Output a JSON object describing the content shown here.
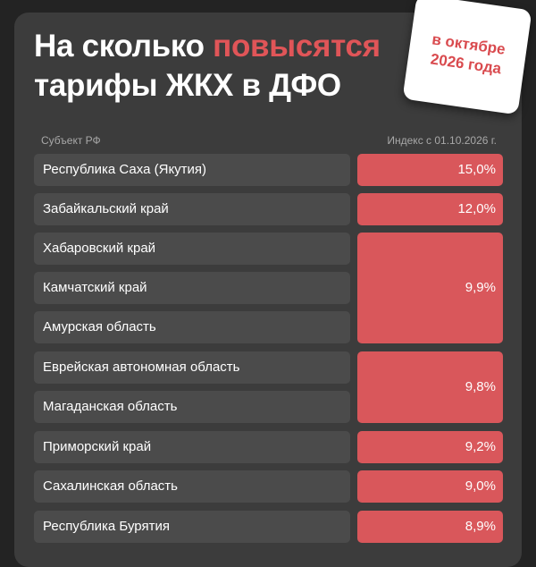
{
  "title": {
    "part1": "На сколько ",
    "highlight": "повысятся",
    "line2": "тарифы ЖКХ в ДФО"
  },
  "badge": {
    "line1": "в октябре",
    "line2": "2026 года"
  },
  "table": {
    "col_subject": "Субъект РФ",
    "col_index": "Индекс с 01.10.2026 г.",
    "rows": [
      "Республика Саха (Якутия)",
      "Забайкальский край",
      "Хабаровский край",
      "Камчатский край",
      "Амурская область",
      "Еврейская автономная область",
      "Магаданская область",
      "Приморский край",
      "Сахалинская область",
      "Республика Бурятия"
    ],
    "values": [
      "15,0%",
      "12,0%",
      "9,9%",
      "9,8%",
      "9,2%",
      "9,0%",
      "8,9%"
    ]
  },
  "colors": {
    "accent": "#e05558",
    "value_cell": "#d9575b",
    "row_cell": "#4b4b4b",
    "panel": "#3c3c3c"
  }
}
